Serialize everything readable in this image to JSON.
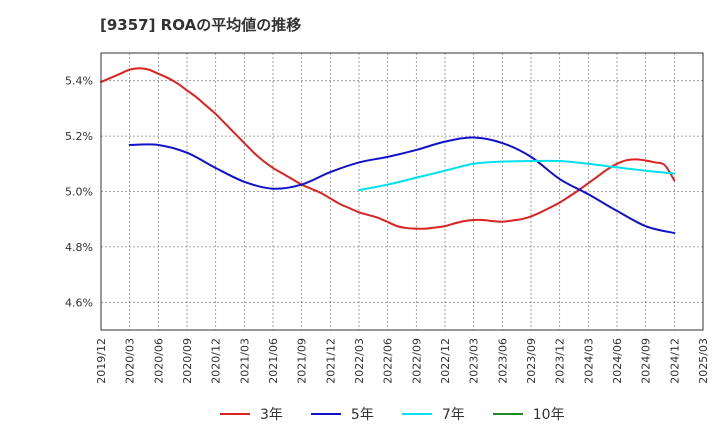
{
  "chart_data": {
    "type": "line",
    "title": "[9357]  ROAの平均値の推移",
    "xlabel": "",
    "ylabel": "",
    "x_ticks": [
      "2019/12",
      "2020/03",
      "2020/06",
      "2020/09",
      "2020/12",
      "2021/03",
      "2021/06",
      "2021/09",
      "2021/12",
      "2022/03",
      "2022/06",
      "2022/09",
      "2022/12",
      "2023/03",
      "2023/06",
      "2023/09",
      "2023/12",
      "2024/03",
      "2024/06",
      "2024/09",
      "2024/12",
      "2025/03"
    ],
    "y_ticks": [
      4.6,
      4.8,
      5.0,
      5.2,
      5.4
    ],
    "y_tick_labels": [
      "4.6%",
      "4.8%",
      "5.0%",
      "5.2%",
      "5.4%"
    ],
    "ylim": [
      4.5,
      5.5
    ],
    "grid": true,
    "legend_position": "bottom",
    "series": [
      {
        "name": "3年",
        "color": "#dd2222",
        "x": [
          "2019/12",
          "2020/01",
          "2020/02",
          "2020/03",
          "2020/04",
          "2020/05",
          "2020/06",
          "2020/07",
          "2020/08",
          "2020/09",
          "2020/10",
          "2020/11",
          "2020/12",
          "2021/01",
          "2021/02",
          "2021/03",
          "2021/04",
          "2021/05",
          "2021/06",
          "2021/07",
          "2021/08",
          "2021/09",
          "2021/10",
          "2021/11",
          "2021/12",
          "2022/01",
          "2022/02",
          "2022/03",
          "2022/04",
          "2022/05",
          "2022/06",
          "2022/07",
          "2022/08",
          "2022/09",
          "2022/10",
          "2022/11",
          "2022/12",
          "2023/01",
          "2023/02",
          "2023/03",
          "2023/04",
          "2023/05",
          "2023/06",
          "2023/07",
          "2023/08",
          "2023/09",
          "2023/10",
          "2023/11",
          "2023/12",
          "2024/01",
          "2024/02",
          "2024/03",
          "2024/04",
          "2024/05",
          "2024/06",
          "2024/07",
          "2024/08",
          "2024/09",
          "2024/10",
          "2024/11",
          "2024/12"
        ],
        "values": [
          5.395,
          5.41,
          5.425,
          5.44,
          5.445,
          5.44,
          5.425,
          5.41,
          5.39,
          5.365,
          5.34,
          5.31,
          5.28,
          5.245,
          5.21,
          5.175,
          5.14,
          5.11,
          5.085,
          5.065,
          5.045,
          5.025,
          5.01,
          4.995,
          4.975,
          4.955,
          4.94,
          4.925,
          4.915,
          4.905,
          4.89,
          4.875,
          4.868,
          4.866,
          4.866,
          4.87,
          4.875,
          4.885,
          4.893,
          4.897,
          4.897,
          4.893,
          4.891,
          4.895,
          4.9,
          4.91,
          4.925,
          4.942,
          4.96,
          4.982,
          5.005,
          5.03,
          5.055,
          5.08,
          5.1,
          5.113,
          5.116,
          5.112,
          5.105,
          5.095,
          5.04
        ]
      },
      {
        "name": "5年",
        "color": "#1111cc",
        "x": [
          "2020/03",
          "2020/06",
          "2020/09",
          "2020/12",
          "2021/03",
          "2021/06",
          "2021/09",
          "2021/12",
          "2022/03",
          "2022/06",
          "2022/09",
          "2022/12",
          "2023/03",
          "2023/06",
          "2023/09",
          "2023/12",
          "2024/03",
          "2024/06",
          "2024/09",
          "2024/12"
        ],
        "values": [
          5.168,
          5.168,
          5.14,
          5.085,
          5.035,
          5.01,
          5.025,
          5.07,
          5.105,
          5.125,
          5.15,
          5.18,
          5.195,
          5.175,
          5.125,
          5.045,
          4.99,
          4.93,
          4.875,
          4.85
        ]
      },
      {
        "name": "7年",
        "color": "#00e0ee",
        "x": [
          "2022/03",
          "2022/06",
          "2022/09",
          "2022/12",
          "2023/03",
          "2023/06",
          "2023/09",
          "2023/12",
          "2024/03",
          "2024/06",
          "2024/09",
          "2024/12"
        ],
        "values": [
          5.005,
          5.025,
          5.05,
          5.075,
          5.1,
          5.108,
          5.11,
          5.11,
          5.1,
          5.087,
          5.075,
          5.065
        ]
      },
      {
        "name": "10年",
        "color": "#228b22",
        "x": [],
        "values": []
      }
    ]
  }
}
